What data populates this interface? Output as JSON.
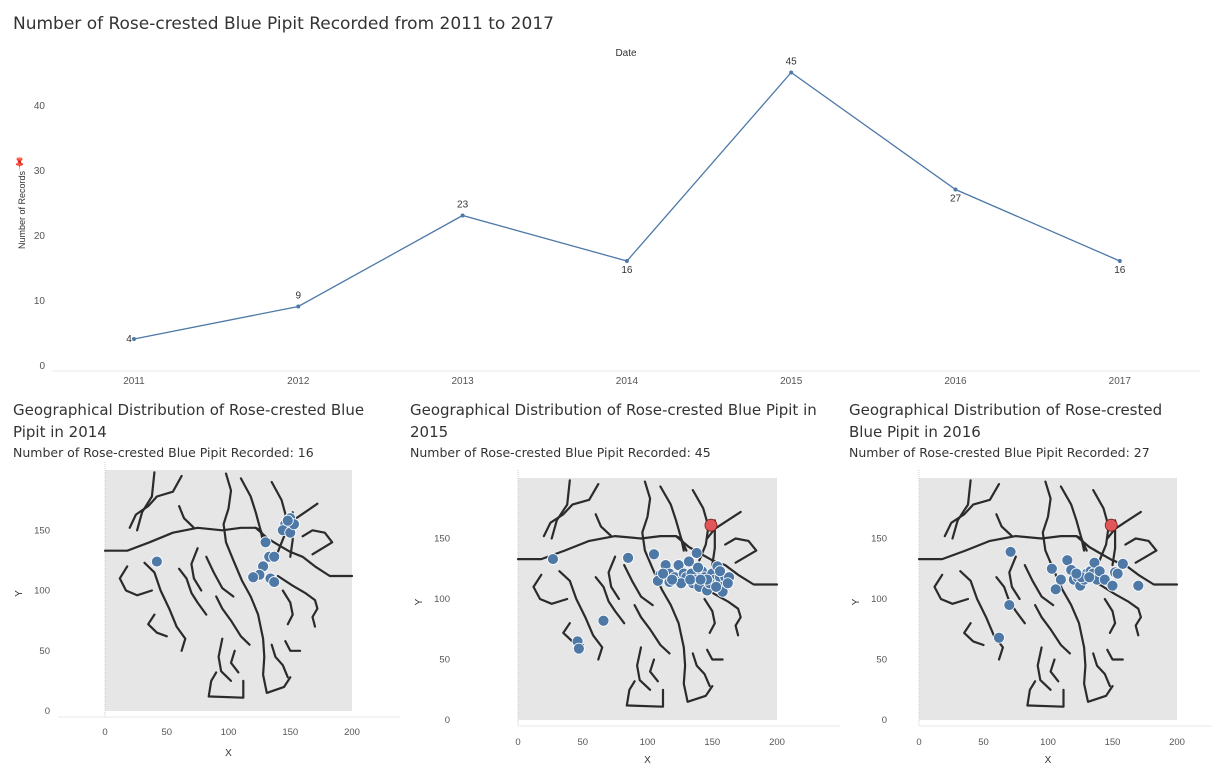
{
  "page": {
    "title": "Number of Rose-crested Blue Pipit Recorded from 2011 to 2017"
  },
  "chart_data": [
    {
      "type": "line",
      "title": "Number of Rose-crested Blue Pipit Recorded from 2011 to 2017",
      "header": "Date",
      "xlabel": "Date",
      "ylabel": "Number of Records",
      "categories": [
        "2011",
        "2012",
        "2013",
        "2014",
        "2015",
        "2016",
        "2017"
      ],
      "values": [
        4,
        9,
        23,
        16,
        45,
        27,
        16
      ],
      "data_labels": [
        "4",
        "9",
        "23",
        "16",
        "45",
        "27",
        "16"
      ],
      "y_ticks": [
        0,
        10,
        20,
        30,
        40
      ],
      "y_tick_labels": [
        "0",
        "10",
        "20",
        "30",
        "40"
      ],
      "ylim": [
        0,
        50
      ],
      "line_color": "#4e79a7"
    },
    {
      "type": "scatter",
      "title": "Geographical Distribution of Rose-crested Blue Pipit in 2014",
      "subtitle": "Number of Rose-crested Blue Pipit Recorded: 16",
      "xlabel": "X",
      "ylabel": "Y",
      "xlim": [
        -38,
        238
      ],
      "ylim": [
        -5,
        200
      ],
      "x_ticks": [
        "0",
        "50",
        "100",
        "150",
        "200"
      ],
      "y_ticks": [
        "0",
        "50",
        "100",
        "150"
      ],
      "points": [
        [
          42,
          124
        ],
        [
          130,
          140
        ],
        [
          133,
          128
        ],
        [
          137,
          128
        ],
        [
          128,
          120
        ],
        [
          125,
          113
        ],
        [
          120,
          111
        ],
        [
          134,
          110
        ],
        [
          137,
          107
        ],
        [
          146,
          155
        ],
        [
          150,
          160
        ],
        [
          150,
          156
        ],
        [
          144,
          150
        ],
        [
          150,
          148
        ],
        [
          153,
          155
        ],
        [
          148,
          158
        ]
      ],
      "highlight": null
    },
    {
      "type": "scatter",
      "title": "Geographical Distribution of Rose-crested Blue Pipit in 2015",
      "subtitle": "Number of Rose-crested Blue Pipit Recorded: 45",
      "xlabel": "X",
      "ylabel": "Y",
      "xlim": [
        -38,
        238
      ],
      "ylim": [
        -5,
        200
      ],
      "x_ticks": [
        "0",
        "50",
        "100",
        "150",
        "200"
      ],
      "y_ticks": [
        "0",
        "50",
        "100",
        "150"
      ],
      "points": [
        [
          27,
          133
        ],
        [
          46,
          65
        ],
        [
          47,
          59
        ],
        [
          66,
          82
        ],
        [
          85,
          134
        ],
        [
          105,
          137
        ],
        [
          110,
          120
        ],
        [
          108,
          115
        ],
        [
          114,
          128
        ],
        [
          117,
          121
        ],
        [
          117,
          114
        ],
        [
          121,
          118
        ],
        [
          124,
          128
        ],
        [
          127,
          116
        ],
        [
          128,
          121
        ],
        [
          130,
          118
        ],
        [
          132,
          131
        ],
        [
          134,
          121
        ],
        [
          135,
          113
        ],
        [
          138,
          138
        ],
        [
          137,
          116
        ],
        [
          140,
          110
        ],
        [
          142,
          123
        ],
        [
          144,
          118
        ],
        [
          146,
          107
        ],
        [
          148,
          113
        ],
        [
          150,
          121
        ],
        [
          152,
          116
        ],
        [
          154,
          127
        ],
        [
          156,
          118
        ],
        [
          158,
          110
        ],
        [
          160,
          118
        ],
        [
          163,
          118
        ],
        [
          158,
          106
        ],
        [
          148,
          113
        ],
        [
          126,
          113
        ],
        [
          112,
          121
        ],
        [
          156,
          123
        ],
        [
          139,
          126
        ],
        [
          146,
          116
        ],
        [
          162,
          113
        ],
        [
          133,
          116
        ],
        [
          119,
          116
        ],
        [
          153,
          110
        ],
        [
          141,
          116
        ]
      ],
      "highlight": [
        149,
        161
      ]
    },
    {
      "type": "scatter",
      "title": "Geographical Distribution of Rose-crested Blue Pipit in 2016",
      "subtitle": "Number of Rose-crested Blue Pipit Recorded: 27",
      "xlabel": "X",
      "ylabel": "Y",
      "xlim": [
        -38,
        238
      ],
      "ylim": [
        -5,
        200
      ],
      "x_ticks": [
        "0",
        "50",
        "100",
        "150",
        "200"
      ],
      "y_ticks": [
        "0",
        "50",
        "100",
        "150"
      ],
      "points": [
        [
          62,
          68
        ],
        [
          70,
          95
        ],
        [
          71,
          139
        ],
        [
          103,
          125
        ],
        [
          106,
          108
        ],
        [
          110,
          116
        ],
        [
          115,
          132
        ],
        [
          118,
          124
        ],
        [
          120,
          116
        ],
        [
          123,
          118
        ],
        [
          125,
          111
        ],
        [
          128,
          116
        ],
        [
          130,
          121
        ],
        [
          133,
          123
        ],
        [
          135,
          121
        ],
        [
          138,
          116
        ],
        [
          136,
          130
        ],
        [
          140,
          123
        ],
        [
          144,
          116
        ],
        [
          150,
          111
        ],
        [
          152,
          122
        ],
        [
          154,
          121
        ],
        [
          158,
          129
        ],
        [
          170,
          111
        ],
        [
          126,
          118
        ],
        [
          122,
          121
        ],
        [
          132,
          118
        ]
      ],
      "highlight": [
        149,
        161
      ]
    }
  ]
}
